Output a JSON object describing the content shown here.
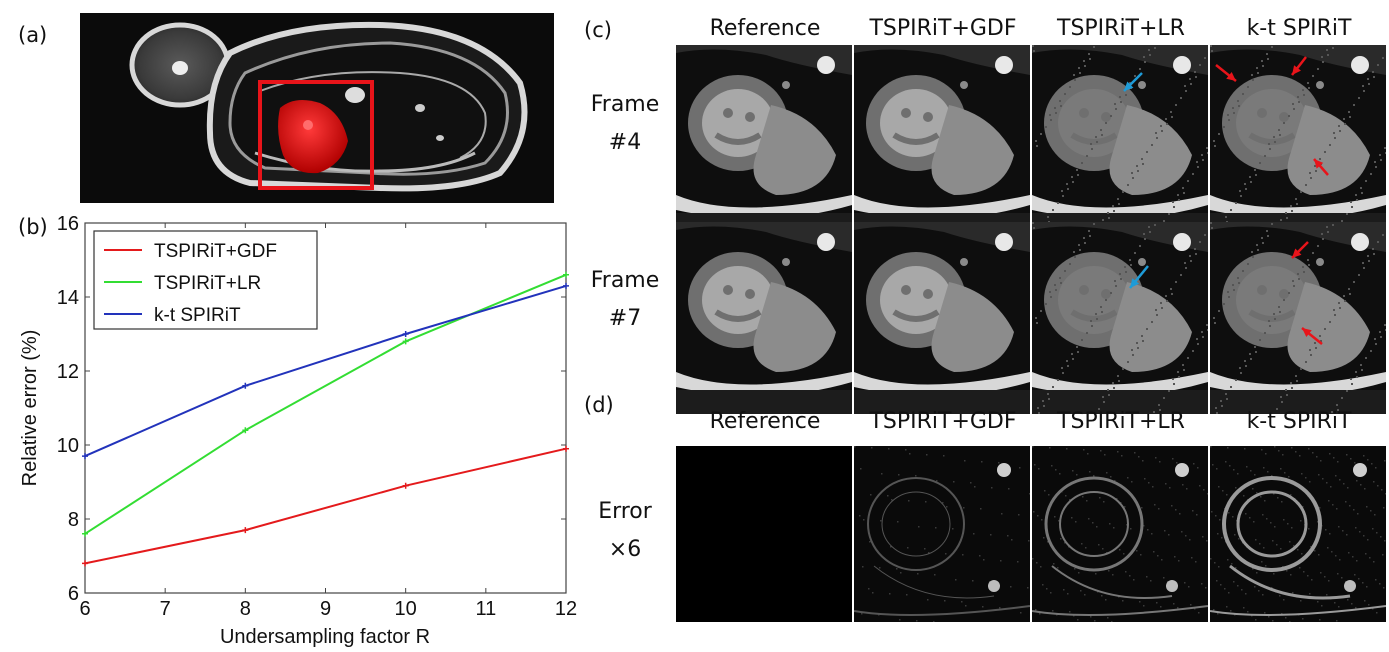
{
  "panels": {
    "a": "(a)",
    "b": "(b)",
    "c": "(c)",
    "d": "(d)"
  },
  "columns": [
    "Reference",
    "TSPIRiT+GDF",
    "TSPIRiT+LR",
    "k-t SPIRiT"
  ],
  "rows_c": [
    {
      "line1": "Frame",
      "line2": "#4"
    },
    {
      "line1": "Frame",
      "line2": "#7"
    }
  ],
  "row_d": {
    "line1": "Error",
    "line2": "×6"
  },
  "colors": {
    "gdf": "#e41a1c",
    "lr": "#33dd33",
    "kt": "#2233bb",
    "highlight_box": "#e8141a",
    "arrow_red": "#e8141a",
    "arrow_blue": "#1e9bd7"
  },
  "chart_data": {
    "type": "line",
    "xlabel": "Undersampling factor R",
    "ylabel": "Relative error (%)",
    "xlim": [
      6,
      12
    ],
    "ylim": [
      6,
      16
    ],
    "xticks": [
      6,
      7,
      8,
      9,
      10,
      11,
      12
    ],
    "yticks": [
      6,
      8,
      10,
      12,
      14,
      16
    ],
    "x": [
      6,
      8,
      10,
      12
    ],
    "legend_position": "top-left",
    "grid": false,
    "series": [
      {
        "name": "TSPIRiT+GDF",
        "color": "#e41a1c",
        "values": [
          6.8,
          7.7,
          8.9,
          9.9
        ]
      },
      {
        "name": "TSPIRiT+LR",
        "color": "#33dd33",
        "values": [
          7.6,
          10.4,
          12.8,
          14.6
        ]
      },
      {
        "name": "k-t SPIRiT",
        "color": "#2233bb",
        "values": [
          9.7,
          11.6,
          13.0,
          14.3
        ]
      }
    ]
  }
}
